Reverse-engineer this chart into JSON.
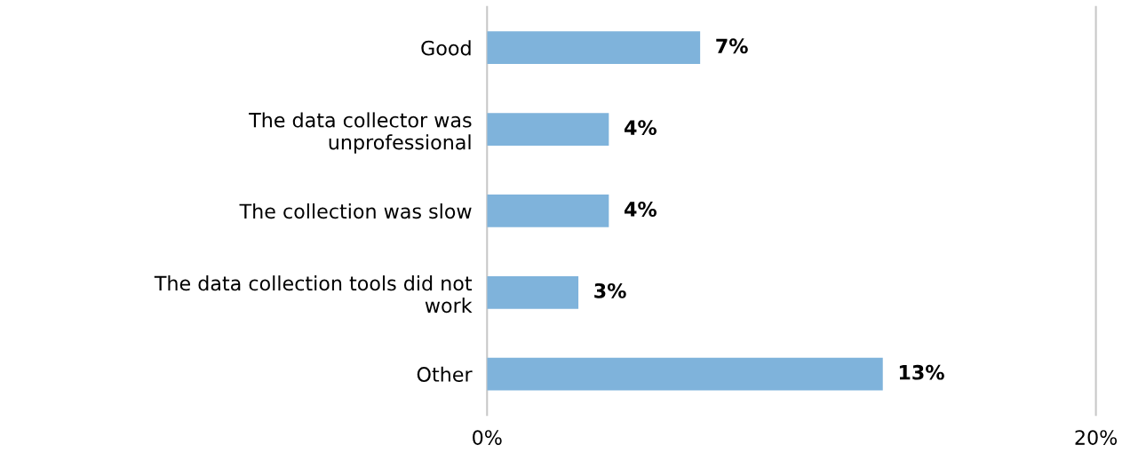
{
  "chart_data": {
    "type": "bar",
    "orientation": "horizontal",
    "categories": [
      "Good",
      "The data collector was\nunprofessional",
      "The collection was slow",
      "The data collection tools did not\nwork",
      "Other"
    ],
    "values": [
      7,
      4,
      4,
      3,
      13
    ],
    "color": "#7fb3db",
    "value_labels": [
      "7%",
      "4%",
      "4%",
      "3%",
      "13%"
    ],
    "xlim": [
      0,
      20
    ],
    "xticks": [
      {
        "value": 0,
        "label": "0%"
      },
      {
        "value": 20,
        "label": "20%"
      }
    ],
    "legend": false
  }
}
